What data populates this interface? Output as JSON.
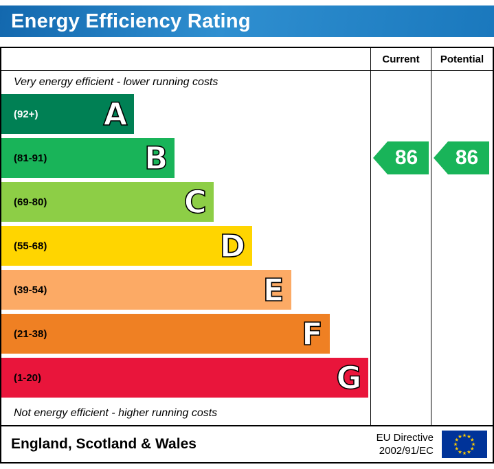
{
  "header": {
    "title": "Energy Efficiency Rating",
    "background_color": "#1c7bc2"
  },
  "table": {
    "columns": {
      "current": "Current",
      "potential": "Potential"
    }
  },
  "chart_data": {
    "type": "bar",
    "title": "Energy Efficiency Rating",
    "top_note": "Very energy efficient - lower running costs",
    "bottom_note": "Not energy efficient - higher running costs",
    "bands": [
      {
        "letter": "A",
        "range": "(92+)",
        "min": 92,
        "max": 100,
        "color": "#008054",
        "range_text_color": "#ffffff",
        "width_pct": 36
      },
      {
        "letter": "B",
        "range": "(81-91)",
        "min": 81,
        "max": 91,
        "color": "#19b459",
        "range_text_color": "#000000",
        "width_pct": 47
      },
      {
        "letter": "C",
        "range": "(69-80)",
        "min": 69,
        "max": 80,
        "color": "#8dce46",
        "range_text_color": "#000000",
        "width_pct": 57.5
      },
      {
        "letter": "D",
        "range": "(55-68)",
        "min": 55,
        "max": 68,
        "color": "#ffd500",
        "range_text_color": "#000000",
        "width_pct": 68
      },
      {
        "letter": "E",
        "range": "(39-54)",
        "min": 39,
        "max": 54,
        "color": "#fcaa65",
        "range_text_color": "#000000",
        "width_pct": 78.5
      },
      {
        "letter": "F",
        "range": "(21-38)",
        "min": 21,
        "max": 38,
        "color": "#ef8023",
        "range_text_color": "#000000",
        "width_pct": 89
      },
      {
        "letter": "G",
        "range": "(1-20)",
        "min": 1,
        "max": 20,
        "color": "#e9153b",
        "range_text_color": "#000000",
        "width_pct": 99.5
      }
    ],
    "current": {
      "label": "Current",
      "value": 86,
      "band": "B",
      "color": "#19b459"
    },
    "potential": {
      "label": "Potential",
      "value": 86,
      "band": "B",
      "color": "#19b459"
    }
  },
  "footer": {
    "region": "England, Scotland & Wales",
    "directive_line1": "EU Directive",
    "directive_line2": "2002/91/EC",
    "flag_colors": {
      "background": "#003399",
      "stars": "#ffcc00"
    }
  }
}
